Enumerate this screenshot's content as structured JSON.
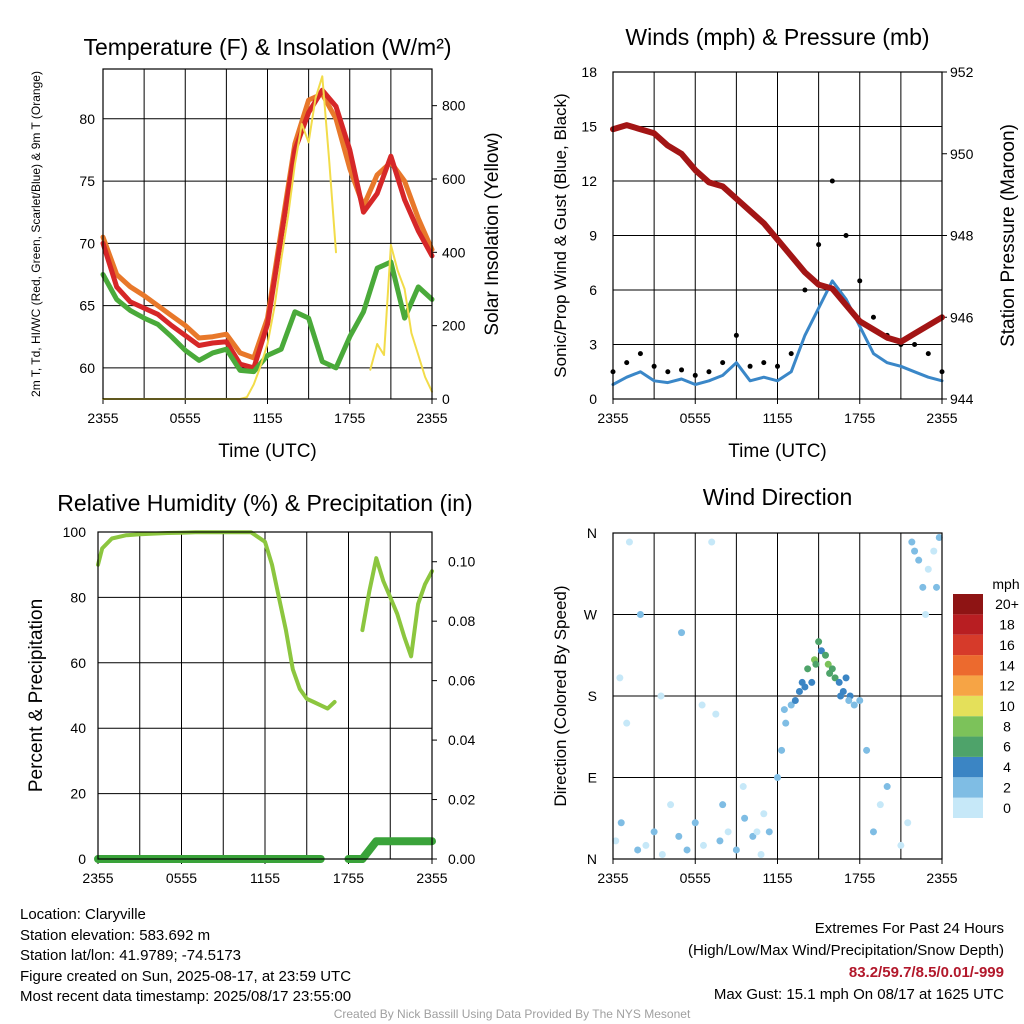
{
  "chart_data": [
    {
      "type": "line",
      "title": "Temperature (F) & Insolation (W/m²)",
      "xlabel": "Time (UTC)",
      "ylabel": "2m T, Td, HI/WC (Red, Green, Scarlet/Blue) & 9m T (Orange)",
      "y2label": "Solar Insolation (Yellow)",
      "x_ticks": [
        "2355",
        "0555",
        "1155",
        "1755",
        "2355"
      ],
      "xlim": [
        0,
        24
      ],
      "ylim": [
        57.5,
        84
      ],
      "y_ticks": [
        60,
        65,
        70,
        75,
        80
      ],
      "y2lim": [
        0,
        900
      ],
      "y2_ticks": [
        0,
        200,
        400,
        600,
        800
      ],
      "series": [
        {
          "color": "#e8782a",
          "axis": "left",
          "x": [
            0,
            1,
            2,
            3,
            4,
            5,
            6,
            7,
            8,
            9,
            10,
            11,
            12,
            13,
            14,
            15,
            16,
            17,
            18,
            19,
            20,
            21,
            22,
            23,
            24
          ],
          "y": [
            70.5,
            67.5,
            66.5,
            65.8,
            65.0,
            64.2,
            63.4,
            62.4,
            62.5,
            62.7,
            61.2,
            60.8,
            64.0,
            71.0,
            78.0,
            81.5,
            82.0,
            80.0,
            76.0,
            73.0,
            75.5,
            76.5,
            75.0,
            72.0,
            69.5
          ]
        },
        {
          "color": "#d62728",
          "axis": "left",
          "x": [
            0,
            1,
            2,
            3,
            4,
            5,
            6,
            7,
            8,
            9,
            10,
            11,
            12,
            13,
            14,
            15,
            16,
            17,
            18,
            19,
            20,
            21,
            22,
            23,
            24
          ],
          "y": [
            70.0,
            66.5,
            65.3,
            64.8,
            64.3,
            63.4,
            62.6,
            61.8,
            62.0,
            62.1,
            60.3,
            60.0,
            63.5,
            70.5,
            77.5,
            80.5,
            82.3,
            81.0,
            77.5,
            72.5,
            74.0,
            77.0,
            73.5,
            71.0,
            69.0
          ]
        },
        {
          "color": "#4aaa3a",
          "axis": "left",
          "x": [
            0,
            1,
            2,
            3,
            4,
            5,
            6,
            7,
            8,
            9,
            10,
            11,
            12,
            13,
            14,
            15,
            16,
            17,
            18,
            19,
            20,
            21,
            22,
            23,
            24
          ],
          "y": [
            67.5,
            65.5,
            64.6,
            64.0,
            63.5,
            62.5,
            61.4,
            60.6,
            61.2,
            61.5,
            59.8,
            59.7,
            61.0,
            61.5,
            64.5,
            64.0,
            60.5,
            60.0,
            62.5,
            64.5,
            68.0,
            68.5,
            64.0,
            66.5,
            65.5
          ]
        },
        {
          "color": "#f2dc4a",
          "axis": "right",
          "x": [
            0,
            1,
            2,
            3,
            4,
            5,
            6,
            7,
            8,
            9,
            10,
            10.5,
            11,
            11.5,
            12,
            12.5,
            13,
            13.5,
            14,
            14.5,
            15,
            15.5,
            16,
            16.5,
            17,
            18,
            19,
            19.5,
            20,
            20.5,
            21,
            21.5,
            22,
            22.5,
            23,
            23.5,
            24
          ],
          "y": [
            0,
            0,
            0,
            0,
            0,
            0,
            0,
            0,
            0,
            0,
            0,
            5,
            40,
            90,
            150,
            250,
            380,
            500,
            640,
            750,
            700,
            820,
            880,
            650,
            400,
            null,
            null,
            80,
            150,
            120,
            420,
            350,
            300,
            180,
            120,
            60,
            20
          ]
        }
      ]
    },
    {
      "type": "line",
      "title": "Winds (mph) & Pressure (mb)",
      "xlabel": "Time (UTC)",
      "ylabel": "Sonic/Prop Wind & Gust (Blue, Black)",
      "y2label": "Station Pressure (Maroon)",
      "x_ticks": [
        "2355",
        "0555",
        "1155",
        "1755",
        "2355"
      ],
      "xlim": [
        0,
        24
      ],
      "ylim": [
        0,
        18
      ],
      "y_ticks": [
        0,
        3,
        6,
        9,
        12,
        15,
        18
      ],
      "y2lim": [
        944,
        952
      ],
      "y2_ticks": [
        944,
        946,
        948,
        950,
        952
      ],
      "series": [
        {
          "color": "#3a87c8",
          "name_hidden": "wind",
          "x": [
            0,
            1,
            2,
            3,
            4,
            5,
            6,
            7,
            8,
            9,
            10,
            11,
            12,
            13,
            14,
            15,
            16,
            17,
            18,
            19,
            20,
            21,
            22,
            23,
            24
          ],
          "y": [
            0.8,
            1.2,
            1.5,
            1.0,
            0.9,
            1.1,
            0.8,
            1.0,
            1.3,
            2.0,
            1.0,
            1.2,
            1.0,
            1.5,
            3.5,
            5.0,
            6.5,
            5.5,
            4.0,
            2.5,
            2.0,
            1.8,
            1.5,
            1.2,
            1.0
          ]
        },
        {
          "color": "#000000",
          "type": "scatter",
          "x": [
            0,
            1,
            2,
            3,
            4,
            5,
            6,
            7,
            8,
            9,
            10,
            11,
            12,
            13,
            14,
            15,
            16,
            17,
            18,
            19,
            20,
            21,
            22,
            23,
            24
          ],
          "y": [
            1.5,
            2.0,
            2.5,
            1.8,
            1.5,
            1.6,
            1.3,
            1.5,
            2.0,
            3.5,
            1.8,
            2.0,
            1.8,
            2.5,
            6.0,
            8.5,
            12.0,
            9.0,
            6.5,
            4.5,
            3.5,
            3.0,
            3.0,
            2.5,
            1.5
          ]
        },
        {
          "color": "#a31515",
          "axis": "right",
          "x": [
            0,
            1,
            2,
            3,
            4,
            5,
            6,
            7,
            8,
            9,
            10,
            11,
            12,
            13,
            14,
            15,
            16,
            17,
            18,
            19,
            20,
            21,
            22,
            23,
            24
          ],
          "y": [
            950.6,
            950.7,
            950.6,
            950.5,
            950.2,
            950.0,
            949.6,
            949.3,
            949.2,
            948.9,
            948.6,
            948.3,
            947.9,
            947.5,
            947.1,
            946.8,
            946.7,
            946.3,
            945.9,
            945.7,
            945.5,
            945.4,
            945.6,
            945.8,
            946.0
          ]
        }
      ]
    },
    {
      "type": "line",
      "title": "Relative Humidity (%) & Precipitation (in)",
      "ylabel": "Percent & Precipitation",
      "x_ticks": [
        "2355",
        "0555",
        "1155",
        "1755",
        "2355"
      ],
      "xlim": [
        0,
        24
      ],
      "ylim": [
        0,
        100
      ],
      "y_ticks": [
        0,
        20,
        40,
        60,
        80,
        100
      ],
      "y2lim": [
        0,
        0.11
      ],
      "y2_ticks": [
        "0.00",
        "0.02",
        "0.04",
        "0.06",
        "0.08",
        "0.10"
      ],
      "series": [
        {
          "color": "#8cc63f",
          "x": [
            0,
            0.3,
            1,
            2,
            3,
            4,
            5,
            6,
            7,
            8,
            9,
            10,
            11,
            12,
            12.5,
            13,
            13.5,
            14,
            14.5,
            15,
            15.5,
            16,
            16.5,
            17,
            18,
            19,
            19.5,
            20,
            20.5,
            21,
            21.5,
            22,
            22.5,
            23,
            23.5,
            24
          ],
          "y": [
            90,
            95,
            98,
            99,
            99.3,
            99.5,
            99.7,
            99.8,
            99.9,
            99.9,
            99.9,
            99.9,
            99.9,
            97,
            90,
            80,
            70,
            58,
            52,
            49,
            48,
            47,
            46,
            48,
            null,
            70,
            82,
            92,
            85,
            80,
            75,
            68,
            62,
            78,
            84,
            88
          ]
        },
        {
          "color": "#3aa33a",
          "axis": "right",
          "x": [
            0,
            1,
            2,
            3,
            4,
            5,
            6,
            7,
            8,
            9,
            10,
            11,
            12,
            13,
            14,
            15,
            16,
            17,
            18,
            19,
            20,
            21,
            22,
            23,
            24
          ],
          "y": [
            0,
            0,
            0,
            0,
            0,
            0,
            0,
            0,
            0,
            0,
            0,
            0,
            0,
            0,
            0,
            0,
            0,
            null,
            0,
            0,
            0.006,
            0.006,
            0.006,
            0.006,
            0.006
          ]
        }
      ]
    },
    {
      "type": "scatter",
      "title": "Wind Direction",
      "ylabel": "Direction (Colored By Speed)",
      "x_ticks": [
        "2355",
        "0555",
        "1155",
        "1755",
        "2355"
      ],
      "xlim": [
        0,
        24
      ],
      "y_ticks": [
        "N",
        "E",
        "S",
        "W",
        "N"
      ],
      "ylim": [
        0,
        360
      ],
      "colorbar": {
        "unit": "mph",
        "labels": [
          "0",
          "2",
          "4",
          "6",
          "8",
          "10",
          "12",
          "14",
          "16",
          "18",
          "20+"
        ],
        "colors": [
          "#c6e8f8",
          "#7fbde4",
          "#3b85c4",
          "#4ea36a",
          "#7cc25a",
          "#e4e05a",
          "#f6a445",
          "#ec6a2e",
          "#d63a2a",
          "#b81e22",
          "#8e1414"
        ]
      },
      "x": [
        0.2,
        0.6,
        1.2,
        1.8,
        2.4,
        3.0,
        3.6,
        4.2,
        4.8,
        5.4,
        6.0,
        6.6,
        7.2,
        7.8,
        8.4,
        9.0,
        9.6,
        10.2,
        10.8,
        11.4,
        12.0,
        12.3,
        12.6,
        13.0,
        13.3,
        13.6,
        14.0,
        14.2,
        14.5,
        14.7,
        15.0,
        15.2,
        15.5,
        15.7,
        16.0,
        16.2,
        16.5,
        16.8,
        17.0,
        17.3,
        17.6,
        18.0,
        18.5,
        19.0,
        19.5,
        20.0,
        21.0,
        21.5,
        22.0,
        22.3,
        22.6,
        23.0,
        23.4,
        23.8,
        0.5,
        1.0,
        2.0,
        3.5,
        5.0,
        6.5,
        7.5,
        8.0,
        9.5,
        10.5,
        11.0,
        12.5,
        13.8,
        14.8,
        15.8,
        16.6,
        17.2,
        21.8,
        22.8,
        23.6
      ],
      "y": [
        20,
        40,
        350,
        10,
        15,
        30,
        5,
        60,
        25,
        10,
        40,
        15,
        350,
        20,
        30,
        10,
        45,
        25,
        5,
        30,
        90,
        120,
        150,
        170,
        175,
        185,
        190,
        210,
        195,
        220,
        240,
        230,
        225,
        215,
        210,
        200,
        195,
        185,
        200,
        180,
        170,
        175,
        120,
        30,
        60,
        80,
        15,
        40,
        340,
        330,
        300,
        320,
        340,
        355,
        200,
        150,
        270,
        180,
        250,
        170,
        160,
        60,
        80,
        30,
        50,
        165,
        195,
        215,
        205,
        180,
        175,
        350,
        270,
        300
      ],
      "speed": [
        0.5,
        1,
        0.5,
        1.5,
        0.5,
        1,
        0.5,
        0.5,
        1,
        2,
        1,
        0.5,
        0.5,
        1,
        0.5,
        1,
        1.5,
        1,
        0.5,
        1,
        1,
        1.5,
        2,
        2.5,
        3,
        3,
        4,
        5,
        3,
        7,
        6,
        4,
        6,
        7,
        5,
        6,
        4,
        3,
        4,
        3,
        2,
        2,
        1,
        1,
        0.5,
        1,
        0.5,
        0.5,
        1,
        2,
        1,
        0.5,
        0.5,
        1,
        0.5,
        0.5,
        1,
        0.5,
        1,
        0.5,
        0.5,
        1,
        0.5,
        0.5,
        0.5,
        2,
        3,
        6,
        5,
        4,
        2,
        1,
        0.5,
        1
      ]
    }
  ],
  "footer_left": {
    "location": "Location: Claryville",
    "elevation": "Station elevation: 583.692 m",
    "latlon": "Station lat/lon: 41.9789; -74.5173",
    "created": "Figure created on Sun, 2025-08-17, at 23:59 UTC",
    "recent": "Most recent data timestamp: 2025/08/17 23:55:00"
  },
  "footer_right": {
    "line1": "Extremes For Past 24 Hours",
    "line2": "(High/Low/Max Wind/Precipitation/Snow Depth)",
    "values": "83.2/59.7/8.5/0.01/-999",
    "gust": "Max Gust: 15.1 mph On 08/17 at 1625 UTC"
  },
  "credit": "Created By Nick Bassill Using Data Provided By The NYS Mesonet"
}
